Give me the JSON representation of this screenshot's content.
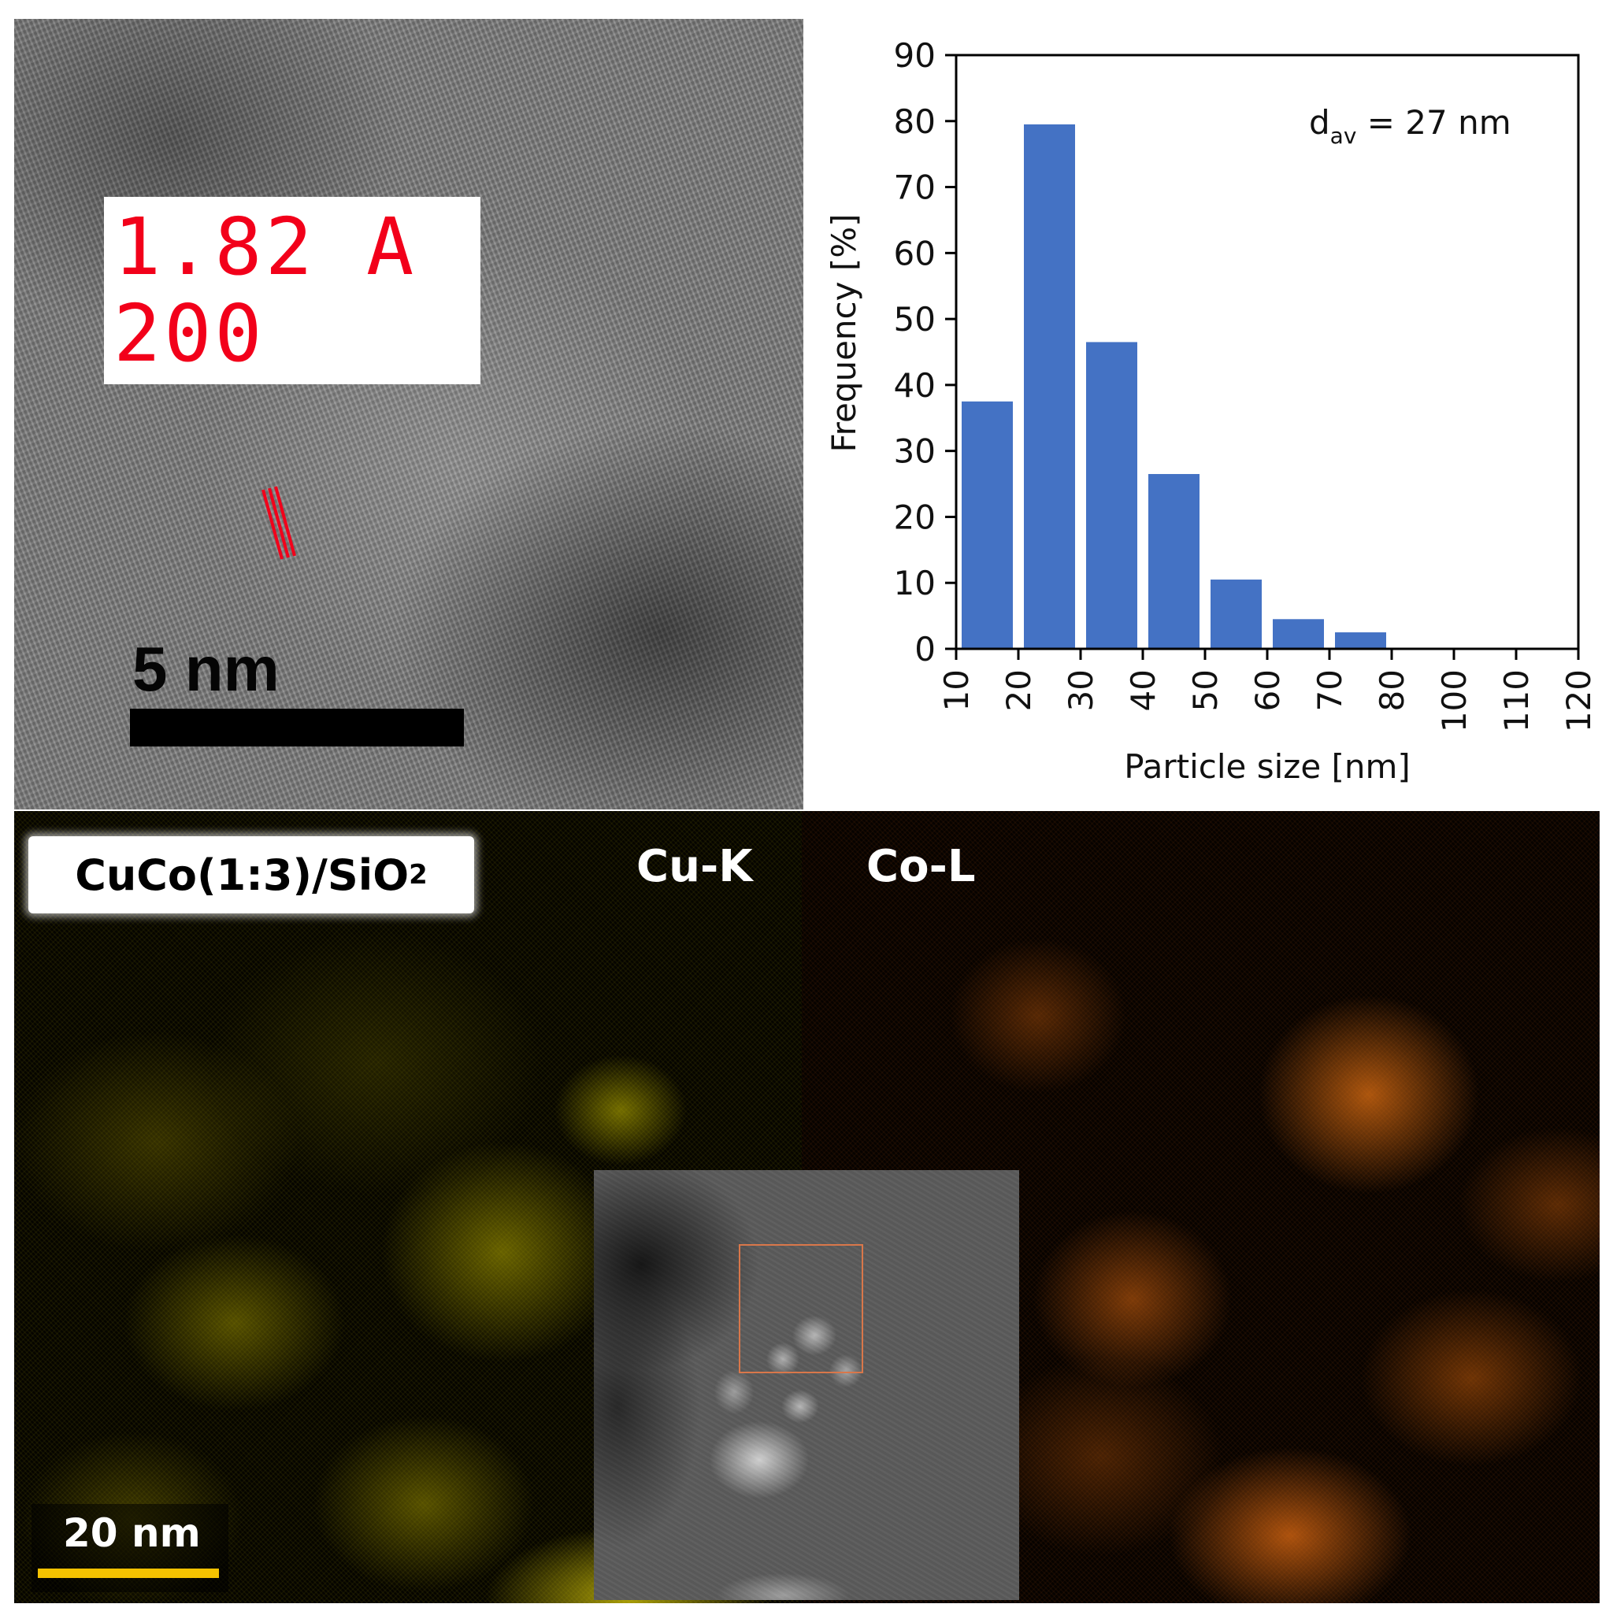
{
  "hrtem": {
    "lattice_spacing": "1.82 A",
    "plane_index": "200",
    "scale_bar_label": "5 nm",
    "marker_color": "#f2001a"
  },
  "chart_data": {
    "type": "bar",
    "x_ticks": [
      "10",
      "20",
      "30",
      "40",
      "50",
      "60",
      "70",
      "80",
      "100",
      "110",
      "120"
    ],
    "categories": [
      "10-20",
      "20-30",
      "30-40",
      "40-50",
      "50-60",
      "60-70",
      "70-80"
    ],
    "values": [
      37.5,
      79.5,
      46.5,
      26.5,
      10.5,
      4.5,
      2.5
    ],
    "xlabel": "Particle size [nm]",
    "ylabel": "Frequency [%]",
    "ylim": [
      0,
      90
    ],
    "y_ticks": [
      0,
      10,
      20,
      30,
      40,
      50,
      60,
      70,
      80,
      90
    ],
    "grid": false,
    "bar_color": "#4472c4",
    "annotation": {
      "prefix": "d",
      "subscript": "av",
      "text": " = 27 nm"
    }
  },
  "eds": {
    "sample_label": {
      "main": "CuCo(1:3)/SiO",
      "sub": "2"
    },
    "cu_map_label": "Cu-K",
    "co_map_label": "Co-L",
    "scale_bar_label": "20 nm",
    "cu_color": "#e0d20a",
    "co_color": "#f07814",
    "scale_bar_color": "#f5c200"
  }
}
